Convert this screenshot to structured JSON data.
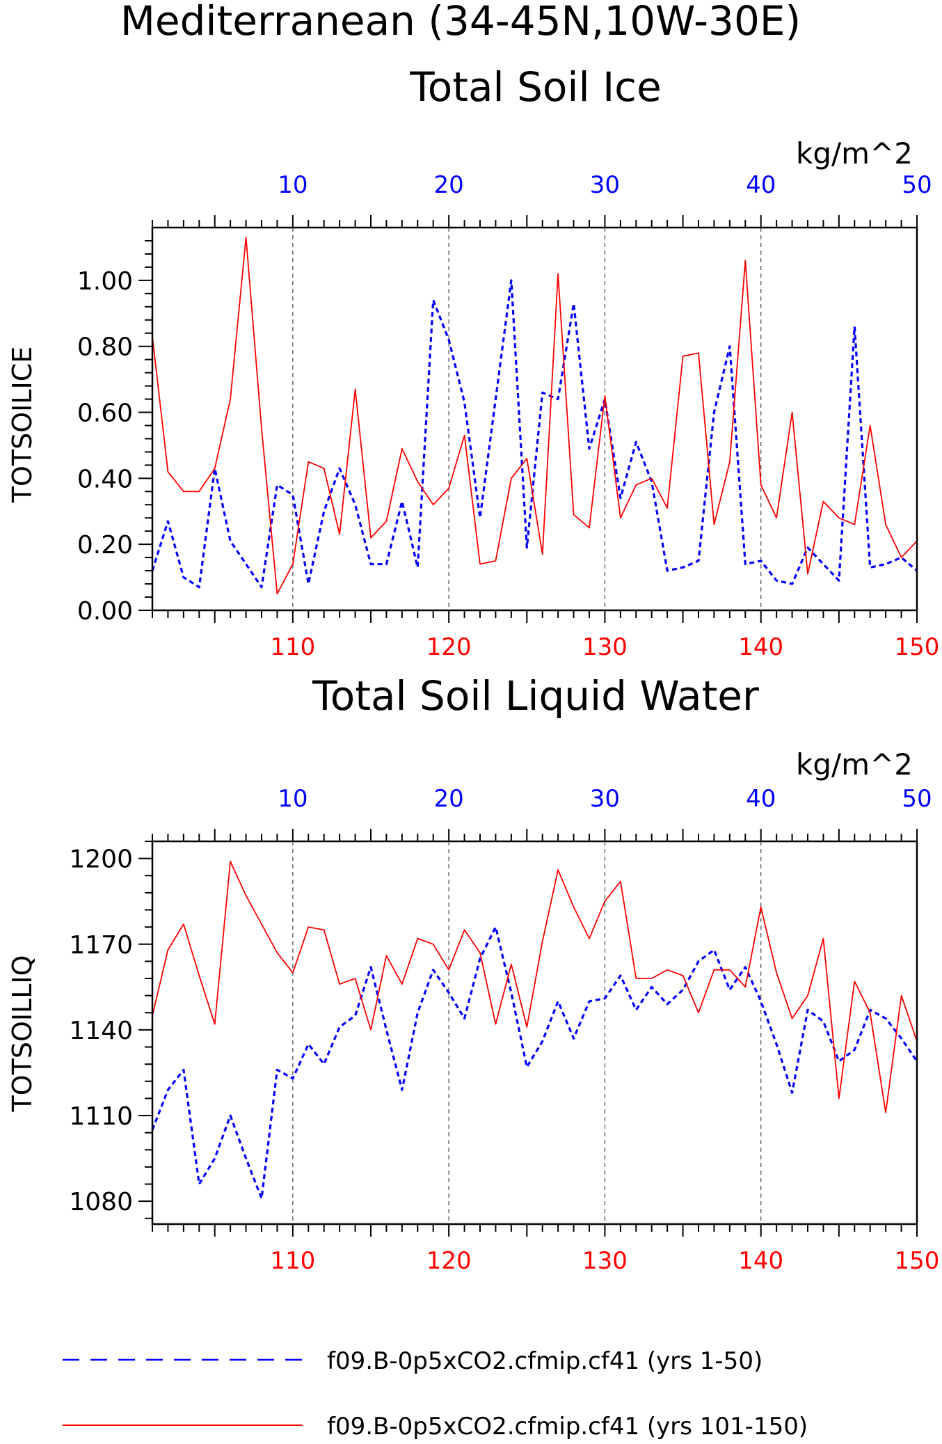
{
  "figure": {
    "title_line1": "Mediterranean (34-45N,10W-30E)"
  },
  "colors": {
    "blue_series": "#0000ff",
    "red_series": "#ff0000",
    "axes": "#000000"
  },
  "legend": {
    "position": "bottom",
    "entries": [
      {
        "label": "f09.B-0p5xCO2.cfmip.cf41 (yrs 1-50)",
        "color": "#0000ff",
        "style": "dashed"
      },
      {
        "label": "f09.B-0p5xCO2.cfmip.cf41 (yrs 101-150)",
        "color": "#ff0000",
        "style": "solid"
      }
    ]
  },
  "chart_data": [
    {
      "type": "line",
      "title": "Total Soil Ice",
      "ylabel": "TOTSOILICE",
      "units": "kg/m^2",
      "ylim": [
        0,
        1.16
      ],
      "yticks": [
        0.0,
        0.2,
        0.4,
        0.6,
        0.8,
        1.0
      ],
      "ytick_labels": [
        "0.00",
        "0.20",
        "0.40",
        "0.60",
        "0.80",
        "1.00"
      ],
      "top_axis": {
        "range": [
          1,
          50
        ],
        "ticks": [
          10,
          20,
          30,
          40,
          50
        ],
        "color": "#0000ff"
      },
      "bottom_axis": {
        "range": [
          101,
          150
        ],
        "ticks": [
          110,
          120,
          130,
          140,
          150
        ],
        "color": "#ff0000"
      },
      "grid": "vertical dashed at major ticks",
      "series": [
        {
          "color": "#0000ff",
          "style": "dashed",
          "x_axis": "top",
          "x": [
            1,
            2,
            3,
            4,
            5,
            6,
            7,
            8,
            9,
            10,
            11,
            12,
            13,
            14,
            15,
            16,
            17,
            18,
            19,
            20,
            21,
            22,
            23,
            24,
            25,
            26,
            27,
            28,
            29,
            30,
            31,
            32,
            33,
            34,
            35,
            36,
            37,
            38,
            39,
            40,
            41,
            42,
            43,
            44,
            45,
            46,
            47,
            48,
            49,
            50
          ],
          "values": [
            0.12,
            0.27,
            0.1,
            0.07,
            0.43,
            0.21,
            0.14,
            0.07,
            0.38,
            0.35,
            0.08,
            0.3,
            0.43,
            0.32,
            0.14,
            0.14,
            0.33,
            0.13,
            0.94,
            0.82,
            0.63,
            0.28,
            0.64,
            1.0,
            0.19,
            0.66,
            0.64,
            0.93,
            0.49,
            0.64,
            0.34,
            0.51,
            0.39,
            0.12,
            0.13,
            0.15,
            0.6,
            0.8,
            0.14,
            0.15,
            0.09,
            0.08,
            0.19,
            0.14,
            0.09,
            0.86,
            0.13,
            0.14,
            0.16,
            0.12
          ]
        },
        {
          "color": "#ff0000",
          "style": "solid",
          "x_axis": "bottom",
          "x": [
            101,
            102,
            103,
            104,
            105,
            106,
            107,
            108,
            109,
            110,
            111,
            112,
            113,
            114,
            115,
            116,
            117,
            118,
            119,
            120,
            121,
            122,
            123,
            124,
            125,
            126,
            127,
            128,
            129,
            130,
            131,
            132,
            133,
            134,
            135,
            136,
            137,
            138,
            139,
            140,
            141,
            142,
            143,
            144,
            145,
            146,
            147,
            148,
            149,
            150
          ],
          "values": [
            0.83,
            0.42,
            0.36,
            0.36,
            0.43,
            0.64,
            1.13,
            0.55,
            0.05,
            0.14,
            0.45,
            0.43,
            0.23,
            0.67,
            0.22,
            0.27,
            0.49,
            0.39,
            0.32,
            0.37,
            0.53,
            0.14,
            0.15,
            0.4,
            0.46,
            0.17,
            1.02,
            0.29,
            0.25,
            0.65,
            0.28,
            0.38,
            0.4,
            0.31,
            0.77,
            0.78,
            0.26,
            0.45,
            1.06,
            0.38,
            0.28,
            0.6,
            0.11,
            0.33,
            0.28,
            0.26,
            0.56,
            0.26,
            0.16,
            0.21
          ]
        }
      ]
    },
    {
      "type": "line",
      "title": "Total Soil Liquid Water",
      "ylabel": "TOTSOILLIQ",
      "units": "kg/m^2",
      "ylim": [
        1072,
        1206
      ],
      "yticks": [
        1080,
        1110,
        1140,
        1170,
        1200
      ],
      "ytick_labels": [
        "1080",
        "1110",
        "1140",
        "1170",
        "1200"
      ],
      "top_axis": {
        "range": [
          1,
          50
        ],
        "ticks": [
          10,
          20,
          30,
          40,
          50
        ],
        "color": "#0000ff"
      },
      "bottom_axis": {
        "range": [
          101,
          150
        ],
        "ticks": [
          110,
          120,
          130,
          140,
          150
        ],
        "color": "#ff0000"
      },
      "grid": "vertical dashed at major ticks",
      "series": [
        {
          "color": "#0000ff",
          "style": "dashed",
          "x_axis": "top",
          "x": [
            1,
            2,
            3,
            4,
            5,
            6,
            7,
            8,
            9,
            10,
            11,
            12,
            13,
            14,
            15,
            16,
            17,
            18,
            19,
            20,
            21,
            22,
            23,
            24,
            25,
            26,
            27,
            28,
            29,
            30,
            31,
            32,
            33,
            34,
            35,
            36,
            37,
            38,
            39,
            40,
            41,
            42,
            43,
            44,
            45,
            46,
            47,
            48,
            49,
            50
          ],
          "values": [
            1105,
            1119,
            1126,
            1086,
            1095,
            1110,
            1095,
            1081,
            1126,
            1123,
            1135,
            1128,
            1141,
            1145,
            1162,
            1140,
            1119,
            1146,
            1161,
            1153,
            1144,
            1165,
            1176,
            1153,
            1127,
            1136,
            1150,
            1137,
            1150,
            1151,
            1159,
            1147,
            1155,
            1149,
            1154,
            1164,
            1168,
            1154,
            1162,
            1150,
            1135,
            1118,
            1147,
            1143,
            1129,
            1133,
            1147,
            1144,
            1137,
            1129
          ]
        },
        {
          "color": "#ff0000",
          "style": "solid",
          "x_axis": "bottom",
          "x": [
            101,
            102,
            103,
            104,
            105,
            106,
            107,
            108,
            109,
            110,
            111,
            112,
            113,
            114,
            115,
            116,
            117,
            118,
            119,
            120,
            121,
            122,
            123,
            124,
            125,
            126,
            127,
            128,
            129,
            130,
            131,
            132,
            133,
            134,
            135,
            136,
            137,
            138,
            139,
            140,
            141,
            142,
            143,
            144,
            145,
            146,
            147,
            148,
            149,
            150
          ],
          "values": [
            1145,
            1168,
            1177,
            1159,
            1142,
            1199,
            1187,
            1177,
            1167,
            1160,
            1176,
            1175,
            1156,
            1158,
            1140,
            1166,
            1156,
            1172,
            1170,
            1161,
            1175,
            1167,
            1142,
            1163,
            1141,
            1171,
            1196,
            1183,
            1172,
            1185,
            1192,
            1158,
            1158,
            1161,
            1159,
            1146,
            1161,
            1161,
            1155,
            1183,
            1160,
            1144,
            1152,
            1172,
            1116,
            1157,
            1146,
            1111,
            1152,
            1136
          ]
        }
      ]
    }
  ]
}
